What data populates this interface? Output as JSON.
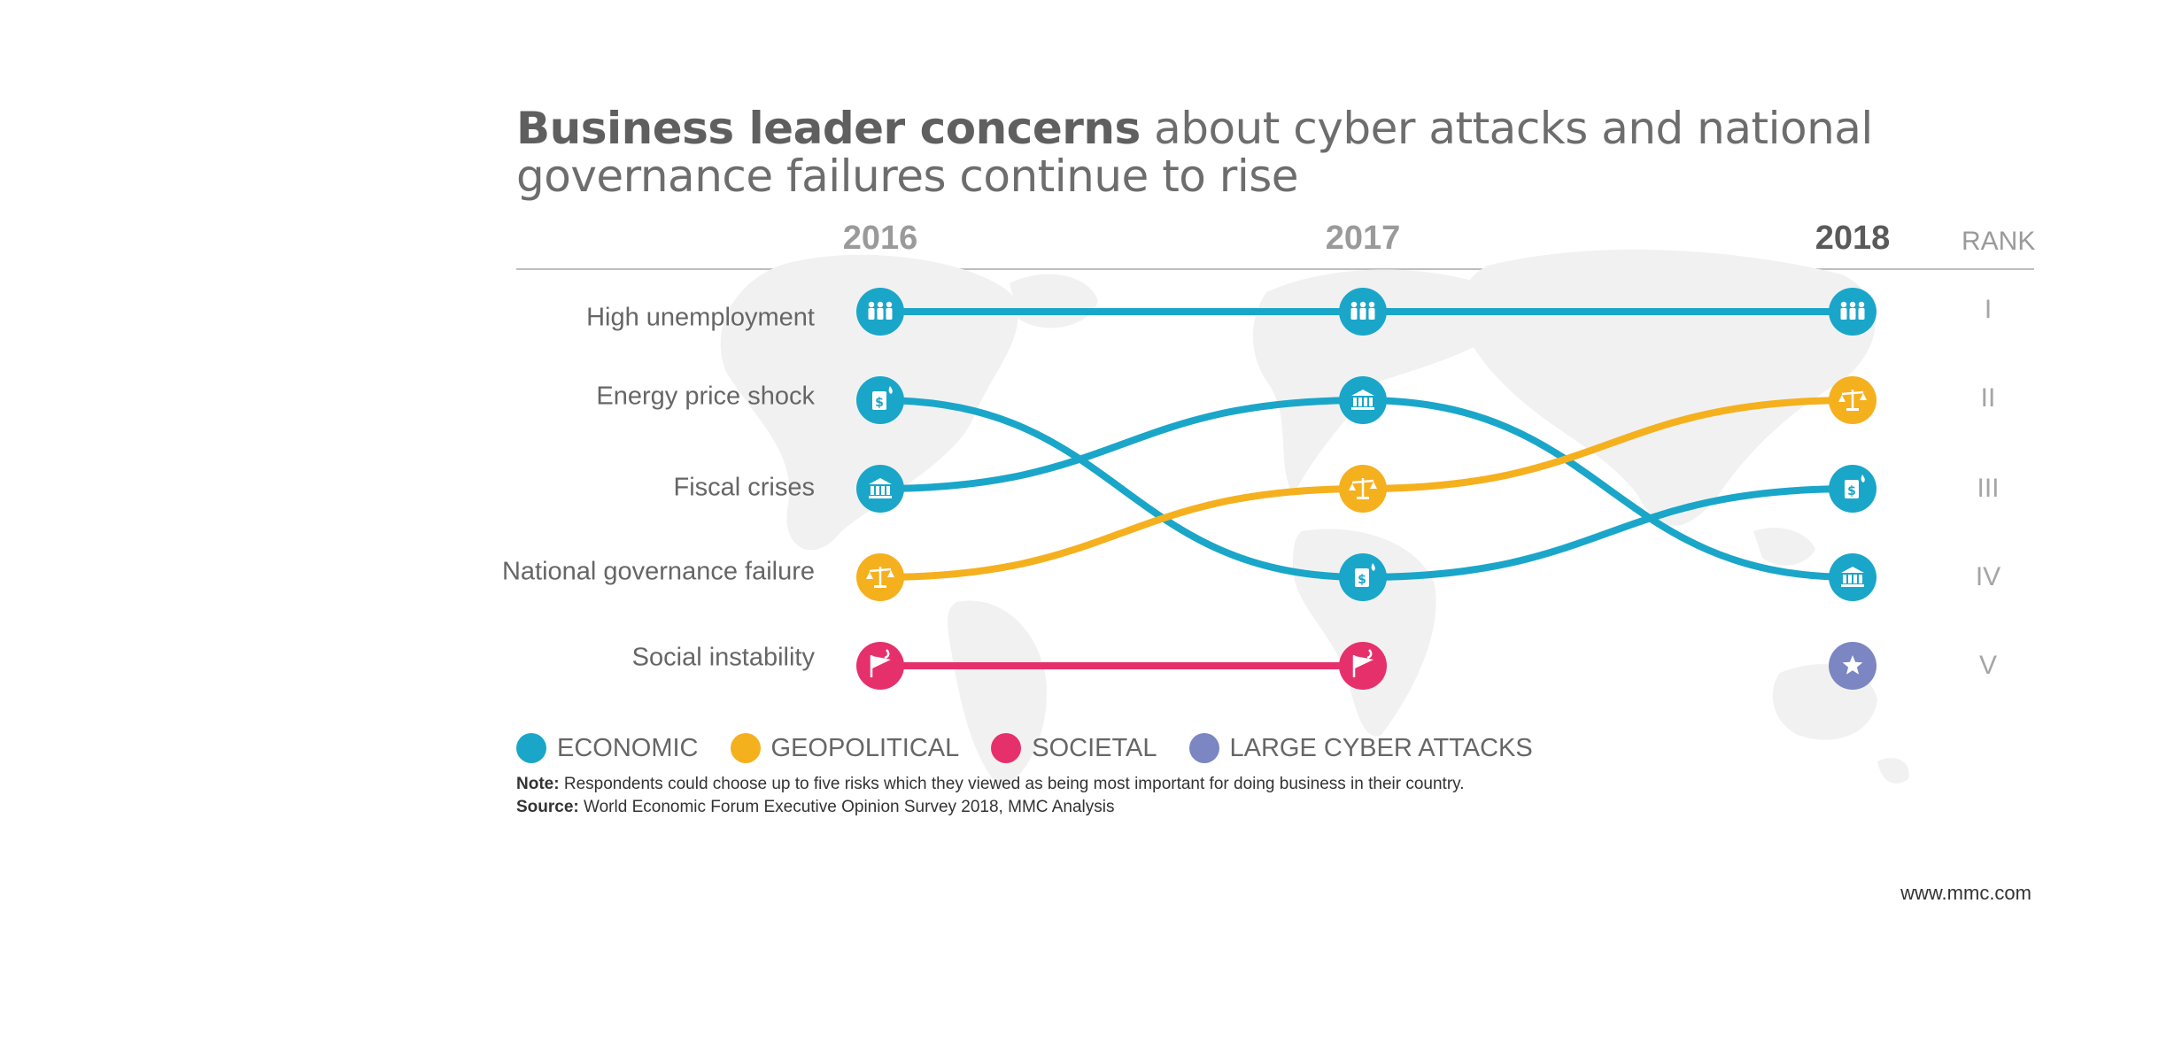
{
  "title": {
    "bold": "Business leader concerns",
    "rest": " about cyber attacks and national governance failures continue to rise"
  },
  "years": [
    "2016",
    "2017",
    "2018"
  ],
  "rank_header": "RANK",
  "ranks": [
    "I",
    "II",
    "III",
    "IV",
    "V"
  ],
  "category_colors": {
    "economic": "#1aa6c9",
    "geopolitical": "#f5b01e",
    "societal": "#e6306c",
    "large_cyber_attacks": "#7b86c2"
  },
  "chart_data": {
    "type": "line",
    "subtype": "bump chart (rank over time)",
    "title": "Business leader concerns about cyber attacks and national governance failures continue to rise",
    "x": [
      "2016",
      "2017",
      "2018"
    ],
    "y_axis": "RANK",
    "y_reversed": true,
    "ylim": [
      1,
      5
    ],
    "rank_labels": [
      "I",
      "II",
      "III",
      "IV",
      "V"
    ],
    "row_labels_2016": [
      "High unemployment",
      "Energy price shock",
      "Fiscal crises",
      "National governance failure",
      "Social instability"
    ],
    "series": [
      {
        "name": "High unemployment",
        "category": "economic",
        "icon": "people-icon",
        "ranks": [
          1,
          1,
          1
        ]
      },
      {
        "name": "Energy price shock",
        "category": "economic",
        "icon": "fuel-can-icon",
        "ranks": [
          2,
          4,
          3
        ]
      },
      {
        "name": "Fiscal crises",
        "category": "economic",
        "icon": "bank-icon",
        "ranks": [
          3,
          2,
          4
        ]
      },
      {
        "name": "National governance failure",
        "category": "geopolitical",
        "icon": "scales-icon",
        "ranks": [
          4,
          3,
          2
        ]
      },
      {
        "name": "Social instability",
        "category": "societal",
        "icon": "flag-icon",
        "ranks": [
          5,
          5,
          null
        ]
      },
      {
        "name": "",
        "category": "large_cyber_attacks",
        "icon": "star-icon",
        "ranks": [
          null,
          null,
          5
        ]
      }
    ],
    "legend": [
      {
        "label": "ECONOMIC",
        "category": "economic"
      },
      {
        "label": "GEOPOLITICAL",
        "category": "geopolitical"
      },
      {
        "label": "SOCIETAL",
        "category": "societal"
      },
      {
        "label": "LARGE CYBER ATTACKS",
        "category": "large_cyber_attacks"
      }
    ],
    "legend_position": "bottom-left",
    "grid": false
  },
  "note": {
    "label": "Note:",
    "text": " Respondents could choose up to five risks which they viewed as being most important for doing business in their country."
  },
  "source": {
    "label": "Source:",
    "text": " World Economic Forum Executive Opinion Survey 2018, MMC Analysis"
  },
  "website": "www.mmc.com"
}
